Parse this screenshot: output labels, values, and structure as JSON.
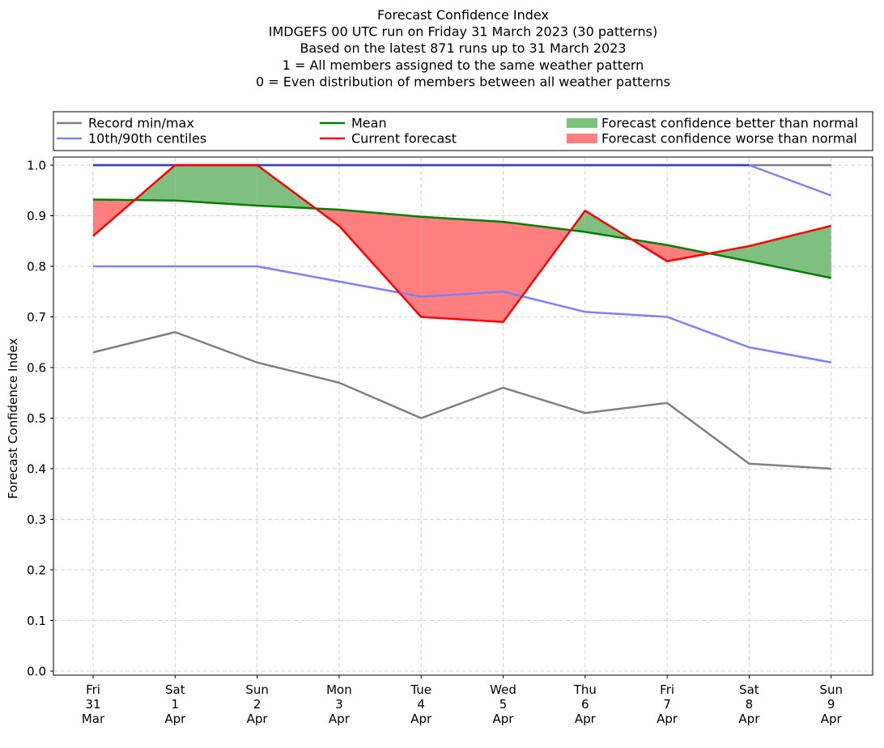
{
  "chart_data": {
    "type": "line",
    "title_lines": [
      "Forecast Confidence Index",
      "IMDGEFS 00 UTC run on Friday 31 March 2023 (30 patterns)",
      "Based on the latest 871 runs up to 31 March 2023",
      "1 = All members assigned to the same weather pattern",
      "0 = Even distribution of members between all weather patterns"
    ],
    "ylabel": "Forecast Confidence Index",
    "ylim": [
      0,
      1.0
    ],
    "yticks": [
      "0.0",
      "0.1",
      "0.2",
      "0.3",
      "0.4",
      "0.5",
      "0.6",
      "0.7",
      "0.8",
      "0.9",
      "1.0"
    ],
    "grid": true,
    "legend_position": "top",
    "categories": [
      [
        "Fri",
        "31",
        "Mar"
      ],
      [
        "Sat",
        "1",
        "Apr"
      ],
      [
        "Sun",
        "2",
        "Apr"
      ],
      [
        "Mon",
        "3",
        "Apr"
      ],
      [
        "Tue",
        "4",
        "Apr"
      ],
      [
        "Wed",
        "5",
        "Apr"
      ],
      [
        "Thu",
        "6",
        "Apr"
      ],
      [
        "Fri",
        "7",
        "Apr"
      ],
      [
        "Sat",
        "8",
        "Apr"
      ],
      [
        "Sun",
        "9",
        "Apr"
      ]
    ],
    "series": {
      "record_min": [
        0.63,
        0.67,
        0.61,
        0.57,
        0.5,
        0.56,
        0.51,
        0.53,
        0.41,
        0.4
      ],
      "record_max": [
        1.0,
        1.0,
        1.0,
        1.0,
        1.0,
        1.0,
        1.0,
        1.0,
        1.0,
        1.0
      ],
      "p10": [
        0.8,
        0.8,
        0.8,
        0.77,
        0.74,
        0.75,
        0.71,
        0.7,
        0.64,
        0.61
      ],
      "p90": [
        1.0,
        1.0,
        1.0,
        1.0,
        1.0,
        1.0,
        1.0,
        1.0,
        1.0,
        0.94
      ],
      "mean": [
        0.932,
        0.93,
        0.92,
        0.912,
        0.898,
        0.888,
        0.868,
        0.842,
        0.81,
        0.777
      ],
      "current": [
        0.86,
        1.0,
        1.0,
        0.88,
        0.7,
        0.69,
        0.91,
        0.81,
        0.84,
        0.88
      ]
    },
    "legend": [
      {
        "label": "Record min/max",
        "kind": "line",
        "color": "#808080"
      },
      {
        "label": "10th/90th centiles",
        "kind": "line",
        "color": "#7f7fff"
      },
      {
        "label": "Mean",
        "kind": "line",
        "color": "#008000"
      },
      {
        "label": "Current forecast",
        "kind": "line",
        "color": "#ff0000"
      },
      {
        "label": "Forecast confidence better than normal",
        "kind": "patch",
        "color": "#7fbf7f"
      },
      {
        "label": "Forecast confidence worse than normal",
        "kind": "patch",
        "color": "#ff7f7f"
      }
    ],
    "colors": {
      "record": "#808080",
      "centile": "#7f7fff",
      "overlap": "#3f3fbf",
      "mean": "#008000",
      "current": "#ff0000",
      "better": "#7fbf7f",
      "worse": "#ff7f7f",
      "grid": "#d3d3d3"
    }
  }
}
